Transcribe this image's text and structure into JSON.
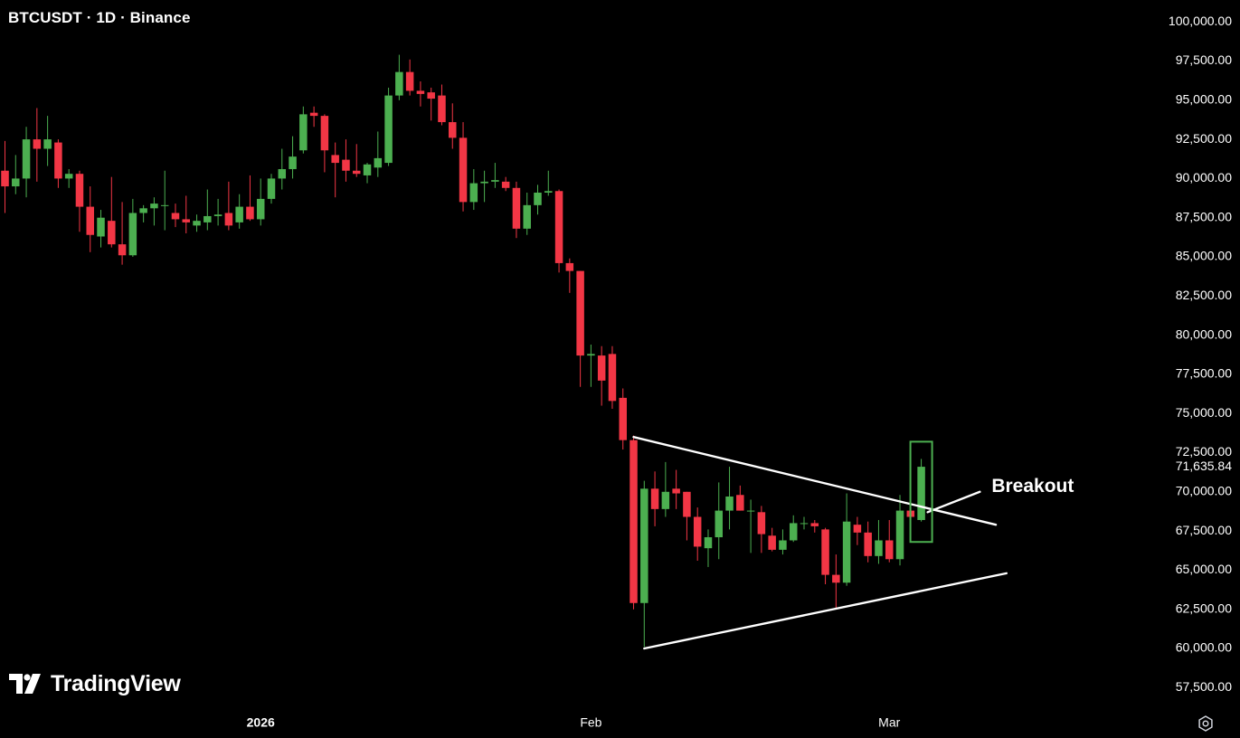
{
  "header": {
    "symbol_title": "BTCUSDT · 1D · Binance"
  },
  "branding": {
    "logo_text": "TradingView",
    "logo_icon": "tradingview-logo-icon"
  },
  "controls": {
    "settings_icon": "gear-icon"
  },
  "colors": {
    "up": "#4caf50",
    "down": "#f23645",
    "background": "#000000",
    "text": "#ffffff",
    "trendline": "#ffffff",
    "highlight_box": "#4caf50"
  },
  "chart_data": {
    "type": "candlestick",
    "title": "BTCUSDT · 1D · Binance",
    "y_axis": {
      "position": "right",
      "ylim": [
        56500,
        101000
      ],
      "ticks": [
        "57,500.00",
        "60,000.00",
        "62,500.00",
        "65,000.00",
        "67,500.00",
        "70,000.00",
        "72,500.00",
        "75,000.00",
        "77,500.00",
        "80,000.00",
        "82,500.00",
        "85,000.00",
        "87,500.00",
        "90,000.00",
        "92,500.00",
        "95,000.00",
        "97,500.00",
        "100,000.00"
      ],
      "tick_values": [
        57500,
        60000,
        62500,
        65000,
        67500,
        70000,
        72500,
        75000,
        77500,
        80000,
        82500,
        85000,
        87500,
        90000,
        92500,
        95000,
        97500,
        100000
      ],
      "last_price_label": "71,635.84",
      "last_price_value": 71635.84
    },
    "x_axis": {
      "labels": [
        {
          "text": "2026",
          "index": 24,
          "bold": true
        },
        {
          "text": "Feb",
          "index": 55,
          "bold": false
        },
        {
          "text": "Mar",
          "index": 83,
          "bold": false
        }
      ]
    },
    "candles": [
      [
        90500,
        92400,
        87800,
        89500
      ],
      [
        89500,
        91500,
        89000,
        90000
      ],
      [
        90000,
        93300,
        88800,
        92500
      ],
      [
        92500,
        94500,
        89800,
        91900
      ],
      [
        91900,
        94000,
        90800,
        92500
      ],
      [
        92300,
        92500,
        89400,
        90000
      ],
      [
        90000,
        90600,
        89400,
        90300
      ],
      [
        90300,
        90500,
        86600,
        88200
      ],
      [
        88200,
        89500,
        85300,
        86400
      ],
      [
        86300,
        88000,
        85600,
        87500
      ],
      [
        87300,
        90100,
        85600,
        85800
      ],
      [
        85800,
        88500,
        84500,
        85100
      ],
      [
        85100,
        88700,
        85000,
        87800
      ],
      [
        87800,
        88300,
        87200,
        88100
      ],
      [
        88100,
        88800,
        87000,
        88400
      ],
      [
        88300,
        90500,
        86700,
        88300
      ],
      [
        87800,
        88400,
        86900,
        87400
      ],
      [
        87400,
        88900,
        86500,
        87200
      ],
      [
        87000,
        87700,
        86600,
        87300
      ],
      [
        87200,
        89300,
        86700,
        87600
      ],
      [
        87600,
        88700,
        87000,
        87700
      ],
      [
        87800,
        89800,
        86700,
        87000
      ],
      [
        87200,
        89000,
        86800,
        88200
      ],
      [
        88200,
        90200,
        87300,
        87400
      ],
      [
        87400,
        90000,
        87000,
        88700
      ],
      [
        88700,
        90300,
        88400,
        90000
      ],
      [
        90000,
        91900,
        89300,
        90600
      ],
      [
        90600,
        92700,
        90000,
        91400
      ],
      [
        91800,
        94600,
        91600,
        94100
      ],
      [
        94200,
        94600,
        93300,
        94000
      ],
      [
        94000,
        94100,
        90400,
        91800
      ],
      [
        91500,
        92300,
        88800,
        91000
      ],
      [
        91200,
        92500,
        89800,
        90500
      ],
      [
        90500,
        92200,
        90100,
        90300
      ],
      [
        90200,
        91000,
        89700,
        90900
      ],
      [
        90700,
        93000,
        90100,
        91300
      ],
      [
        91000,
        95800,
        90800,
        95300
      ],
      [
        95300,
        97900,
        95000,
        96800
      ],
      [
        96800,
        97600,
        95300,
        95600
      ],
      [
        95600,
        96200,
        94600,
        95400
      ],
      [
        95500,
        95800,
        93700,
        95100
      ],
      [
        95300,
        96000,
        93400,
        93600
      ],
      [
        93600,
        94800,
        91900,
        92600
      ],
      [
        92600,
        93600,
        87900,
        88500
      ],
      [
        88500,
        90600,
        88000,
        89700
      ],
      [
        89700,
        90500,
        88500,
        89800
      ],
      [
        89800,
        91000,
        89400,
        89900
      ],
      [
        89800,
        90100,
        89200,
        89400
      ],
      [
        89400,
        89800,
        86200,
        86800
      ],
      [
        86800,
        89100,
        86400,
        88300
      ],
      [
        88300,
        89600,
        87700,
        89100
      ],
      [
        89100,
        90500,
        88900,
        89200
      ],
      [
        89200,
        89300,
        84000,
        84600
      ],
      [
        84600,
        84900,
        82700,
        84100
      ],
      [
        84100,
        84100,
        76700,
        78700
      ],
      [
        78700,
        79400,
        76700,
        78800
      ],
      [
        78700,
        79300,
        75500,
        77100
      ],
      [
        78800,
        79300,
        75300,
        75800
      ],
      [
        76000,
        76600,
        72700,
        73300
      ],
      [
        73300,
        73600,
        62500,
        62900
      ],
      [
        62900,
        70700,
        60100,
        70200
      ],
      [
        70200,
        71300,
        67800,
        68900
      ],
      [
        68900,
        71900,
        68400,
        70000
      ],
      [
        70200,
        71400,
        68900,
        69900
      ],
      [
        70000,
        70000,
        66900,
        68400
      ],
      [
        68400,
        69000,
        65600,
        66500
      ],
      [
        66400,
        67600,
        65200,
        67100
      ],
      [
        67100,
        70600,
        65700,
        68800
      ],
      [
        68800,
        71600,
        67600,
        69700
      ],
      [
        69800,
        70400,
        68800,
        68800
      ],
      [
        68800,
        69500,
        66100,
        68800
      ],
      [
        68700,
        69100,
        66100,
        67300
      ],
      [
        67200,
        67700,
        66200,
        66300
      ],
      [
        66300,
        67600,
        66000,
        66900
      ],
      [
        66900,
        68500,
        66800,
        68000
      ],
      [
        68000,
        68400,
        67600,
        68000
      ],
      [
        68000,
        68200,
        67400,
        67800
      ],
      [
        67600,
        67700,
        64100,
        64700
      ],
      [
        64700,
        66000,
        62500,
        64200
      ],
      [
        64200,
        69900,
        64000,
        68100
      ],
      [
        67900,
        68400,
        66600,
        67400
      ],
      [
        67400,
        68100,
        65500,
        65900
      ],
      [
        65900,
        68200,
        65400,
        66900
      ],
      [
        66900,
        68200,
        65500,
        65700
      ],
      [
        65700,
        69800,
        65300,
        68800
      ],
      [
        68800,
        69200,
        68200,
        68400
      ],
      [
        68200,
        72100,
        68100,
        71600
      ]
    ],
    "annotations": [
      {
        "type": "trendline",
        "from": {
          "index": 59,
          "price": 73500
        },
        "to": {
          "index": 93,
          "price": 67900
        }
      },
      {
        "type": "trendline",
        "from": {
          "index": 60,
          "price": 60000
        },
        "to": {
          "index": 94,
          "price": 64800
        }
      },
      {
        "type": "trendline",
        "from": {
          "index": 86.6,
          "price": 68700
        },
        "to": {
          "index": 91.5,
          "price": 70000
        }
      },
      {
        "type": "highlight_box",
        "index": 86,
        "from_price": 66800,
        "to_price": 73200
      },
      {
        "type": "text",
        "text": "Breakout",
        "index": 92.6,
        "price": 70300
      }
    ]
  }
}
